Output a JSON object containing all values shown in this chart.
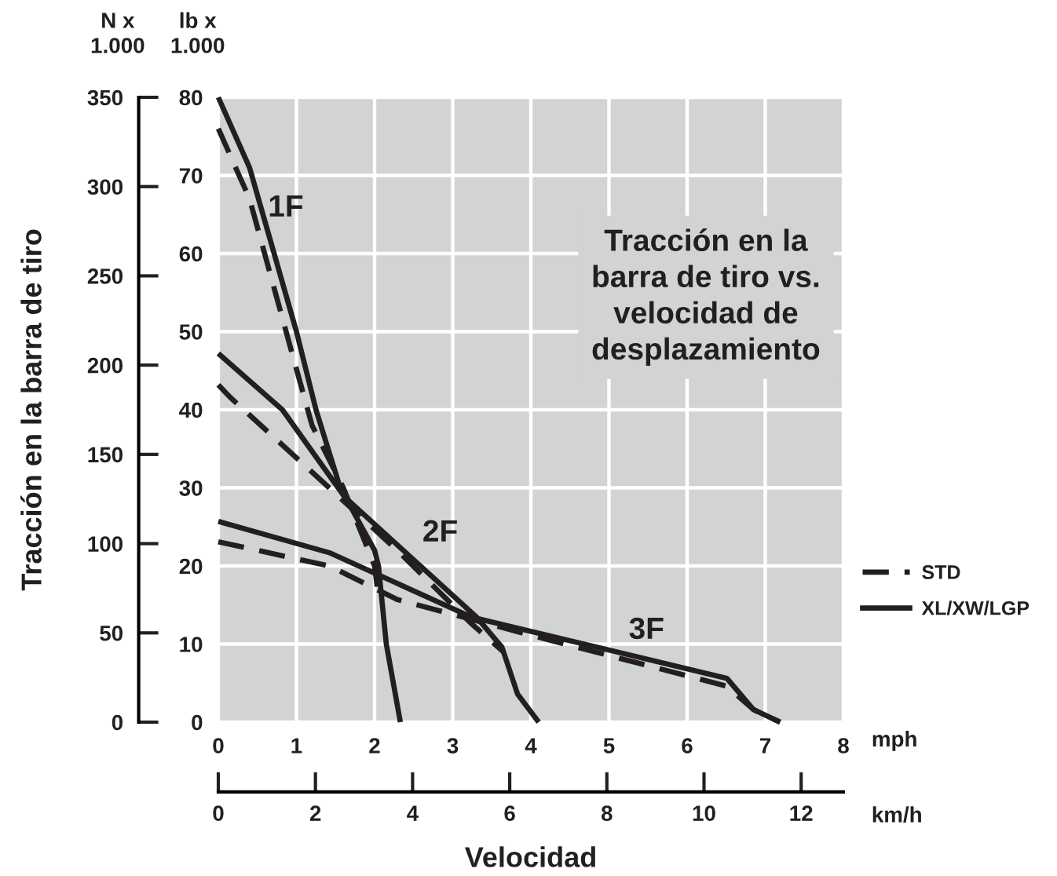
{
  "chart_data": {
    "type": "line",
    "title": "Tracción en la\nbarra de tiro vs.\nvelocidad de\ndesplazamiento",
    "xlabel": "mph",
    "ylabel": "lb x\n1.000",
    "y2label": "N x\n1.000",
    "x2label": "km/h",
    "xlim": [
      0,
      8
    ],
    "xticks": [
      0,
      1,
      2,
      3,
      4,
      5,
      6,
      7,
      8
    ],
    "ylim": [
      0,
      80
    ],
    "yticks": [
      0,
      10,
      20,
      30,
      40,
      50,
      60,
      70,
      80
    ],
    "y2lim": [
      0,
      350
    ],
    "y2ticks": [
      0,
      50,
      100,
      150,
      200,
      250,
      300,
      350
    ],
    "x2lim": [
      0,
      12.87
    ],
    "x2ticks": [
      0,
      2,
      4,
      6,
      8,
      10,
      12
    ],
    "grid": true,
    "legend": "right",
    "series": [
      {
        "name": "STD",
        "color": "#231f20",
        "line_style": "dashed",
        "x": [
          0,
          0.4,
          0.95,
          1.2,
          1.6,
          2.0,
          2.05,
          null,
          0,
          0.15,
          1.42,
          2.29,
          3.23,
          3.65,
          null,
          0,
          1.42,
          2.29,
          3.9,
          6.51,
          6.85,
          7.19
        ],
        "values": [
          76,
          67,
          47,
          38,
          30,
          20,
          16,
          null,
          43.2,
          41.6,
          30,
          22,
          12.7,
          9,
          null,
          23.1,
          20,
          15.7,
          11.4,
          4.6,
          1.6,
          0
        ]
      },
      {
        "name": "XL/XW/LGP",
        "color": "#231f20",
        "line_style": "solid",
        "x": [
          0,
          0.4,
          1.0,
          1.25,
          1.56,
          2.0,
          2.05,
          2.15,
          2.33,
          null,
          0,
          0.82,
          1.62,
          2.29,
          3.3,
          3.63,
          3.83,
          4.1,
          null,
          0,
          1.42,
          3.23,
          3.43,
          6.51,
          6.85,
          7.19
        ],
        "values": [
          80,
          71,
          50,
          40,
          30,
          22,
          20,
          10,
          0,
          null,
          47.2,
          40,
          28.8,
          22.7,
          13.5,
          9.6,
          3.6,
          0,
          null,
          25.7,
          21.7,
          13.5,
          13,
          5.6,
          1.6,
          0
        ]
      }
    ],
    "annotations": [
      "1F",
      "2F",
      "3F",
      "Tracción en la barra de tiro",
      "Velocidad"
    ]
  }
}
